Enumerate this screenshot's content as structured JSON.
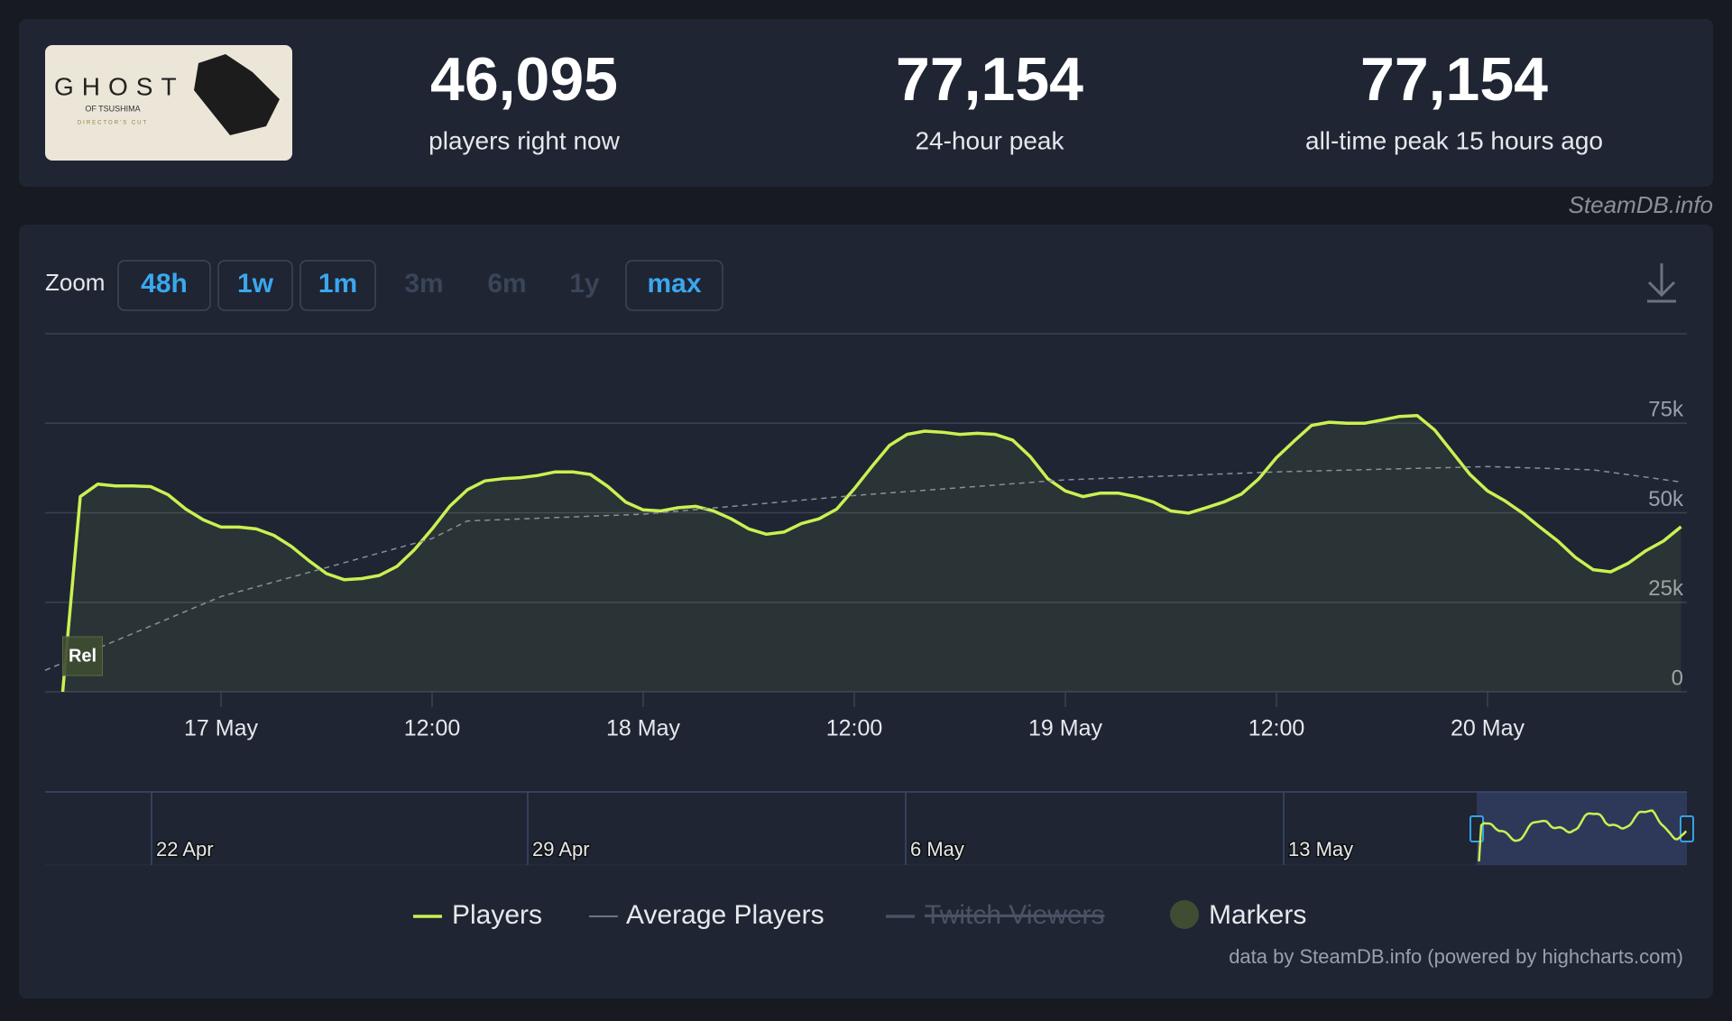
{
  "brand": "SteamDB.info",
  "image": {
    "title": "GHOST",
    "subtitle": "OF TSUSHIMA",
    "edition": "DIRECTOR'S CUT"
  },
  "stats": [
    {
      "value": "46,095",
      "label": "players right now"
    },
    {
      "value": "77,154",
      "label": "24-hour peak"
    },
    {
      "value": "77,154",
      "label": "all-time peak 15 hours ago"
    }
  ],
  "zoom": {
    "label": "Zoom",
    "buttons": [
      {
        "label": "48h",
        "enabled": true
      },
      {
        "label": "1w",
        "enabled": true
      },
      {
        "label": "1m",
        "enabled": true
      },
      {
        "label": "3m",
        "enabled": false
      },
      {
        "label": "6m",
        "enabled": false
      },
      {
        "label": "1y",
        "enabled": false
      },
      {
        "label": "max",
        "enabled": true
      }
    ]
  },
  "chart_data": {
    "type": "line",
    "xlim": [
      "16 May 14:00",
      "20 May 11:20"
    ],
    "xticks": [
      {
        "value": "17 May 00:00",
        "label": "17 May"
      },
      {
        "value": "17 May 12:00",
        "label": "12:00"
      },
      {
        "value": "18 May 00:00",
        "label": "18 May"
      },
      {
        "value": "18 May 12:00",
        "label": "12:00"
      },
      {
        "value": "19 May 00:00",
        "label": "19 May"
      },
      {
        "value": "19 May 12:00",
        "label": "12:00"
      },
      {
        "value": "20 May 00:00",
        "label": "20 May"
      }
    ],
    "ylim": [
      0,
      100000
    ],
    "yticks": [
      0,
      {
        "value": 25000,
        "label": "25k"
      },
      {
        "value": 50000,
        "label": "50k"
      },
      {
        "value": 75000,
        "label": "75k"
      }
    ],
    "grid": true,
    "series": [
      {
        "name": "Players",
        "color": "#c9f152",
        "fill": true,
        "x": [
          "16 May 15:00",
          "16 May 16:00",
          "16 May 17:00",
          "16 May 18:00",
          "16 May 19:00",
          "16 May 20:00",
          "16 May 21:00",
          "16 May 22:00",
          "16 May 23:00",
          "17 May 00:00",
          "17 May 01:00",
          "17 May 02:00",
          "17 May 03:00",
          "17 May 04:00",
          "17 May 05:00",
          "17 May 06:00",
          "17 May 07:00",
          "17 May 08:00",
          "17 May 09:00",
          "17 May 10:00",
          "17 May 11:00",
          "17 May 12:00",
          "17 May 13:00",
          "17 May 14:00",
          "17 May 15:00",
          "17 May 16:00",
          "17 May 17:00",
          "17 May 18:00",
          "17 May 19:00",
          "17 May 20:00",
          "17 May 21:00",
          "17 May 22:00",
          "17 May 23:00",
          "18 May 00:00",
          "18 May 01:00",
          "18 May 02:00",
          "18 May 03:00",
          "18 May 04:00",
          "18 May 05:00",
          "18 May 06:00",
          "18 May 07:00",
          "18 May 08:00",
          "18 May 09:00",
          "18 May 10:00",
          "18 May 11:00",
          "18 May 12:00",
          "18 May 13:00",
          "18 May 14:00",
          "18 May 15:00",
          "18 May 16:00",
          "18 May 17:00",
          "18 May 18:00",
          "18 May 19:00",
          "18 May 20:00",
          "18 May 21:00",
          "18 May 22:00",
          "18 May 23:00",
          "19 May 00:00",
          "19 May 01:00",
          "19 May 02:00",
          "19 May 03:00",
          "19 May 04:00",
          "19 May 05:00",
          "19 May 06:00",
          "19 May 07:00",
          "19 May 08:00",
          "19 May 09:00",
          "19 May 10:00",
          "19 May 11:00",
          "19 May 12:00",
          "19 May 13:00",
          "19 May 14:00",
          "19 May 15:00",
          "19 May 16:00",
          "19 May 17:00",
          "19 May 18:00",
          "19 May 19:00",
          "19 May 20:00",
          "19 May 21:00",
          "19 May 22:00",
          "19 May 23:00",
          "20 May 00:00",
          "20 May 01:00",
          "20 May 02:00",
          "20 May 03:00",
          "20 May 04:00",
          "20 May 05:00",
          "20 May 06:00",
          "20 May 07:00",
          "20 May 08:00",
          "20 May 09:00",
          "20 May 10:00",
          "20 May 11:00"
        ],
        "values": [
          0,
          54500,
          58000,
          57500,
          57500,
          57300,
          55000,
          51000,
          48000,
          46000,
          46000,
          45500,
          43700,
          40600,
          36600,
          33000,
          31300,
          31600,
          32500,
          35000,
          39700,
          45500,
          51800,
          56400,
          58900,
          59500,
          59800,
          60400,
          61400,
          61400,
          60700,
          57300,
          53000,
          50800,
          50500,
          51400,
          51800,
          50500,
          48300,
          45500,
          44000,
          44600,
          47000,
          48300,
          51000,
          56700,
          62900,
          68800,
          71900,
          72800,
          72500,
          71900,
          72200,
          71900,
          70300,
          65700,
          59500,
          56100,
          54500,
          55500,
          55500,
          54500,
          53000,
          50500,
          49900,
          51400,
          53000,
          55200,
          59500,
          65400,
          70000,
          74400,
          75300,
          75000,
          75000,
          75900,
          76900,
          77154,
          73100,
          66900,
          60700,
          56100,
          53300,
          49900,
          45900,
          42100,
          37500,
          34100,
          33500,
          35900,
          39400,
          42100,
          46095
        ]
      },
      {
        "name": "Average Players",
        "color": "#8a8f99",
        "dashed": true,
        "x": [
          "16 May 14:00",
          "17 May 00:00",
          "17 May 12:00",
          "17 May 14:00",
          "18 May 00:00",
          "18 May 12:00",
          "19 May 00:00",
          "19 May 12:00",
          "20 May 00:00",
          "20 May 06:00",
          "20 May 11:00"
        ],
        "values": [
          6000,
          26600,
          42800,
          47700,
          49600,
          54800,
          59200,
          61400,
          62900,
          62000,
          58600
        ]
      },
      {
        "name": "Twitch Viewers",
        "color": "#4a5263",
        "hidden": true,
        "x": [],
        "values": []
      }
    ],
    "markers": {
      "name": "Markers",
      "color": "#3f4d32",
      "items": [
        {
          "x": "16 May 15:00",
          "label": "Rel"
        }
      ]
    },
    "navigator_ticks": [
      "22 Apr",
      "29 Apr",
      "6 May",
      "13 May"
    ],
    "credits": "data by SteamDB.info (powered by highcharts.com)"
  }
}
